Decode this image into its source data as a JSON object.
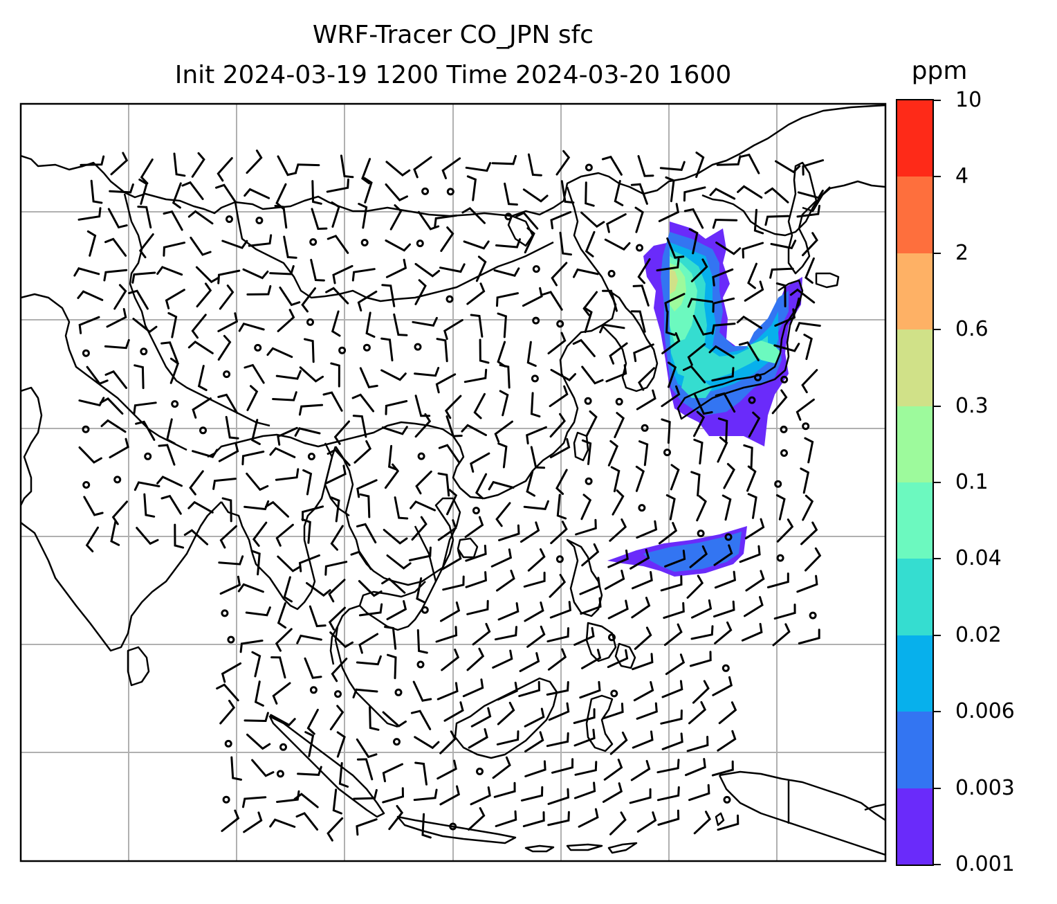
{
  "title": {
    "line1": "WRF-Tracer CO_JPN sfc",
    "line2": "Init 2024-03-19 1200 Time 2024-03-20 1600"
  },
  "colorbar": {
    "unit": "ppm",
    "levels": [
      "0.001",
      "0.003",
      "0.006",
      "0.02",
      "0.04",
      "0.1",
      "0.3",
      "0.6",
      "2",
      "4",
      "10"
    ],
    "colors": [
      "#6a2bfa",
      "#3375f2",
      "#07b0ec",
      "#35ddd0",
      "#6cf9bf",
      "#9dfa9c",
      "#d0e188",
      "#feb165",
      "#fe6f3d",
      "#fe2a18"
    ]
  },
  "map": {
    "gridlines": true,
    "gridline_color": "#b0b0b0",
    "coastline_color": "#000000",
    "wind_barbs": true
  }
}
